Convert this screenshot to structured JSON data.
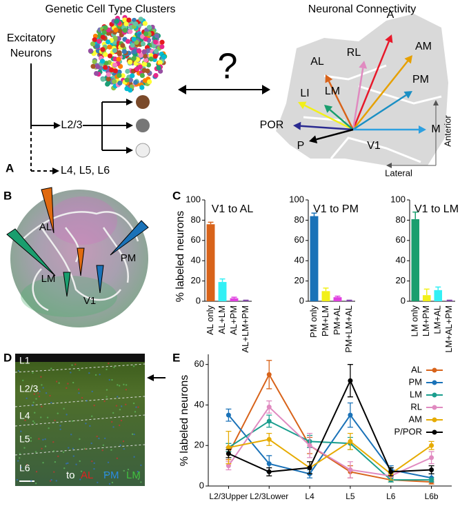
{
  "panel_labels": [
    "A",
    "B",
    "C",
    "D",
    "E"
  ],
  "panel_a": {
    "left_title": "Genetic Cell Type Clusters",
    "excitatory": [
      "Excitatory",
      "Neurons"
    ],
    "l23": "L2/3",
    "deep": "L4, L5, L6",
    "question": "?",
    "right_title": "Neuronal Connectivity",
    "areas": [
      "A",
      "AM",
      "RL",
      "AL",
      "PM",
      "LI",
      "LM",
      "POR",
      "M",
      "P"
    ],
    "v1": "V1",
    "anterior": "Anterior",
    "lateral": "Lateral"
  },
  "panel_b": {
    "labels": [
      "AL",
      "LM",
      "V1",
      "PM"
    ]
  },
  "panel_d": {
    "layers": [
      "L1",
      "L2/3",
      "L4",
      "L5",
      "L6"
    ],
    "to": "to",
    "areas": [
      "AL",
      "PM",
      "LM"
    ]
  },
  "chart_data": [
    {
      "type": "bar",
      "title": "V1 to AL",
      "y_label": "% labeled neurons",
      "categories": [
        "AL only",
        "AL+LM",
        "AL+PM",
        "AL+LM+PM"
      ],
      "values": [
        76,
        19,
        3,
        0.5
      ],
      "errors": [
        2,
        3,
        1,
        0.5
      ],
      "colors": [
        "#d8631a",
        "#33f0f5",
        "#e040e0",
        "#7a3aa0"
      ],
      "ylim": [
        0,
        100
      ],
      "yticks": [
        0,
        20,
        40,
        60,
        80,
        100
      ]
    },
    {
      "type": "bar",
      "title": "V1 to PM",
      "categories": [
        "PM only",
        "PM+LM",
        "PM+AL",
        "PM+LM+AL"
      ],
      "values": [
        84,
        10,
        4,
        0.5
      ],
      "errors": [
        3,
        3,
        1,
        0.5
      ],
      "colors": [
        "#1a72b8",
        "#f2f019",
        "#e040e0",
        "#7a3aa0"
      ],
      "ylim": [
        0,
        100
      ],
      "yticks": [
        0,
        20,
        40,
        60,
        80,
        100
      ]
    },
    {
      "type": "bar",
      "title": "V1 to LM",
      "categories": [
        "LM only",
        "LM+PM",
        "LM+AL",
        "LM+AL+PM"
      ],
      "values": [
        81,
        6,
        11,
        0.5
      ],
      "errors": [
        7,
        6,
        3,
        0.5
      ],
      "colors": [
        "#1a9e6e",
        "#f2f019",
        "#33f0f5",
        "#7a3aa0"
      ],
      "ylim": [
        0,
        100
      ],
      "yticks": [
        0,
        20,
        40,
        60,
        80,
        100
      ]
    },
    {
      "type": "line",
      "y_label": "% labeled neurons",
      "categories": [
        "L2/3Upper",
        "L2/3Lower",
        "L4",
        "L5",
        "L6",
        "L6b"
      ],
      "ylim": [
        0,
        65
      ],
      "yticks": [
        0,
        20,
        40,
        60
      ],
      "series": [
        {
          "name": "AL",
          "color": "#d8631a",
          "values": [
            16,
            55,
            20,
            7,
            3,
            2
          ],
          "errors": [
            3,
            7,
            4,
            3,
            1,
            1
          ]
        },
        {
          "name": "PM",
          "color": "#1a72b8",
          "values": [
            35,
            11,
            6,
            35,
            8,
            4
          ],
          "errors": [
            3,
            4,
            2,
            6,
            2,
            2
          ]
        },
        {
          "name": "LM",
          "color": "#1a9e8e",
          "values": [
            19,
            32,
            22,
            21,
            3,
            3
          ],
          "errors": [
            2,
            3,
            3,
            3,
            1,
            1
          ]
        },
        {
          "name": "RL",
          "color": "#e08ac0",
          "values": [
            10,
            39,
            20,
            8,
            5,
            14
          ],
          "errors": [
            2,
            3,
            6,
            4,
            2,
            3
          ]
        },
        {
          "name": "AM",
          "color": "#e6ab02",
          "values": [
            19,
            23,
            9,
            22,
            6,
            20
          ],
          "errors": [
            8,
            3,
            3,
            4,
            3,
            2
          ]
        },
        {
          "name": "P/POR",
          "color": "#000000",
          "values": [
            16,
            7,
            9,
            52,
            7,
            8
          ],
          "errors": [
            2,
            2,
            3,
            8,
            2,
            2
          ]
        }
      ]
    }
  ]
}
